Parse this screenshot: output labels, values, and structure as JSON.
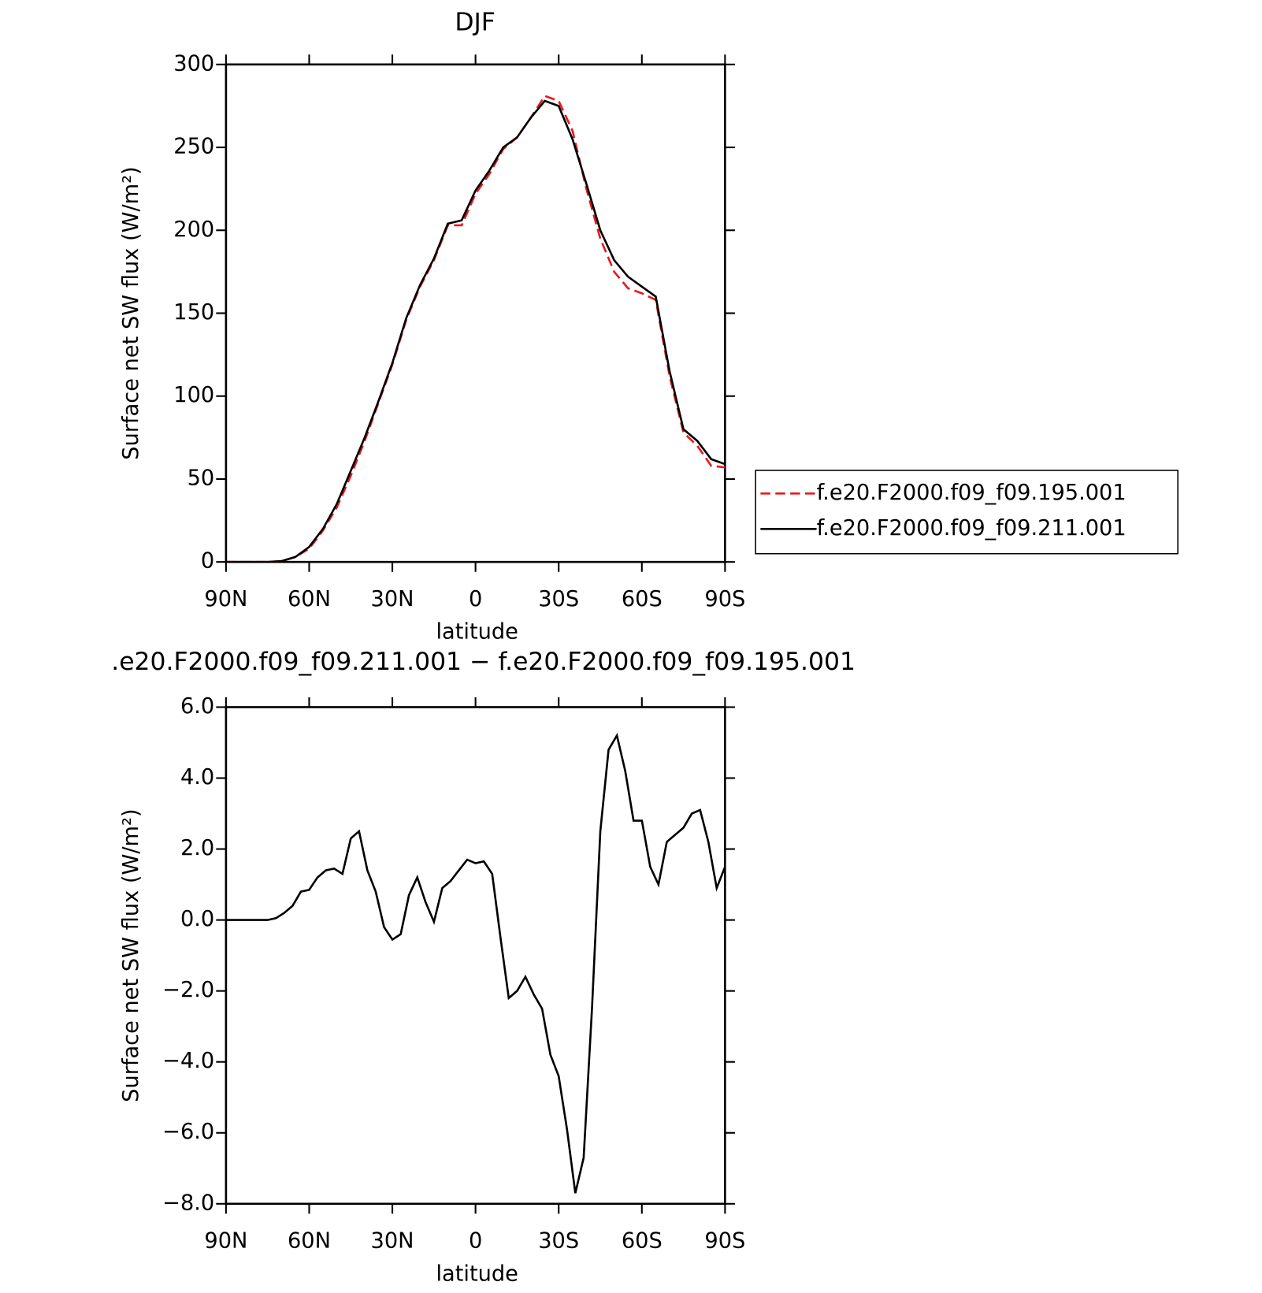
{
  "chart_data": [
    {
      "type": "line",
      "title": "DJF",
      "xlabel": "latitude",
      "ylabel": "Surface net SW flux (W/m²)",
      "xlim": [
        90,
        -90
      ],
      "xticks": [
        {
          "value": 90,
          "label": "90N"
        },
        {
          "value": 60,
          "label": "60N"
        },
        {
          "value": 30,
          "label": "30N"
        },
        0,
        {
          "value": -30,
          "label": "30S"
        },
        {
          "value": -60,
          "label": "60S"
        },
        {
          "value": -90,
          "label": "90S"
        }
      ],
      "ylim": [
        0,
        300
      ],
      "yticks": [
        0,
        50,
        100,
        150,
        200,
        250,
        300
      ],
      "legend": "right",
      "x": [
        90,
        85,
        80,
        75,
        70,
        65,
        60,
        55,
        50,
        45,
        40,
        35,
        30,
        25,
        20,
        15,
        10,
        5,
        0,
        -5,
        -10,
        -15,
        -20,
        -25,
        -30,
        -35,
        -40,
        -45,
        -50,
        -55,
        -60,
        -65,
        -70,
        -75,
        -80,
        -85,
        -90
      ],
      "series": [
        {
          "name": "f.e20.F2000.f09_f09.195.001",
          "color": "#e8191c",
          "line_style": "dashed",
          "values": [
            0,
            0,
            0,
            0,
            0.5,
            3,
            8,
            19,
            33,
            52,
            73,
            96,
            119,
            146,
            166,
            182,
            203,
            203,
            222,
            234,
            249,
            256,
            268,
            281,
            278,
            260,
            225,
            195,
            175,
            165,
            162,
            158,
            112,
            78,
            70,
            58,
            57
          ]
        },
        {
          "name": "f.e20.F2000.f09_f09.211.001",
          "color": "#000000",
          "line_style": "solid",
          "values": [
            0,
            0,
            0,
            0,
            0.5,
            3,
            9,
            20,
            35,
            55,
            75,
            97,
            120,
            147,
            167,
            183,
            204,
            206,
            224,
            236,
            250,
            256,
            268,
            278,
            275,
            255,
            228,
            200,
            182,
            172,
            166,
            160,
            115,
            80,
            73,
            62,
            59
          ]
        }
      ]
    },
    {
      "type": "line",
      "title": ".e20.F2000.f09_f09.211.001 − f.e20.F2000.f09_f09.195.001",
      "xlabel": "latitude",
      "ylabel": "Surface net SW flux (W/m²)",
      "xlim": [
        90,
        -90
      ],
      "xticks": [
        {
          "value": 90,
          "label": "90N"
        },
        {
          "value": 60,
          "label": "60N"
        },
        {
          "value": 30,
          "label": "30N"
        },
        0,
        {
          "value": -30,
          "label": "30S"
        },
        {
          "value": -60,
          "label": "60S"
        },
        {
          "value": -90,
          "label": "90S"
        }
      ],
      "ylim": [
        -8,
        6
      ],
      "yticks": [
        {
          "value": -8,
          "label": "−8.0"
        },
        {
          "value": -6,
          "label": "−6.0"
        },
        {
          "value": -4,
          "label": "−4.0"
        },
        {
          "value": -2,
          "label": "−2.0"
        },
        {
          "value": 0,
          "label": "0.0"
        },
        {
          "value": 2,
          "label": "2.0"
        },
        {
          "value": 4,
          "label": "4.0"
        },
        {
          "value": 6,
          "label": "6.0"
        }
      ],
      "x": [
        90,
        87,
        84,
        81,
        78,
        75,
        72,
        69,
        66,
        63,
        60,
        57,
        54,
        51,
        48,
        45,
        42,
        39,
        36,
        33,
        30,
        27,
        24,
        21,
        18,
        15,
        12,
        9,
        6,
        3,
        0,
        -3,
        -6,
        -9,
        -12,
        -15,
        -18,
        -21,
        -24,
        -27,
        -30,
        -33,
        -36,
        -39,
        -42,
        -45,
        -48,
        -51,
        -54,
        -57,
        -60,
        -63,
        -66,
        -69,
        -72,
        -75,
        -78,
        -81,
        -84,
        -87,
        -90
      ],
      "series": [
        {
          "color": "#000000",
          "line_style": "solid",
          "values": [
            0,
            0,
            0,
            0,
            0,
            0,
            0.05,
            0.2,
            0.4,
            0.8,
            0.85,
            1.2,
            1.4,
            1.45,
            1.3,
            2.3,
            2.5,
            1.4,
            0.8,
            -0.2,
            -0.55,
            -0.4,
            0.7,
            1.2,
            0.5,
            -0.05,
            0.9,
            1.1,
            1.4,
            1.7,
            1.6,
            1.65,
            1.3,
            -0.5,
            -2.2,
            -2.0,
            -1.6,
            -2.1,
            -2.5,
            -3.8,
            -4.4,
            -5.9,
            -7.7,
            -6.7,
            -2.5,
            2.5,
            4.8,
            5.2,
            4.2,
            2.8,
            2.8,
            1.5,
            1.0,
            2.2,
            2.4,
            2.6,
            3.0,
            3.1,
            2.2,
            0.9,
            1.5
          ]
        }
      ]
    }
  ]
}
